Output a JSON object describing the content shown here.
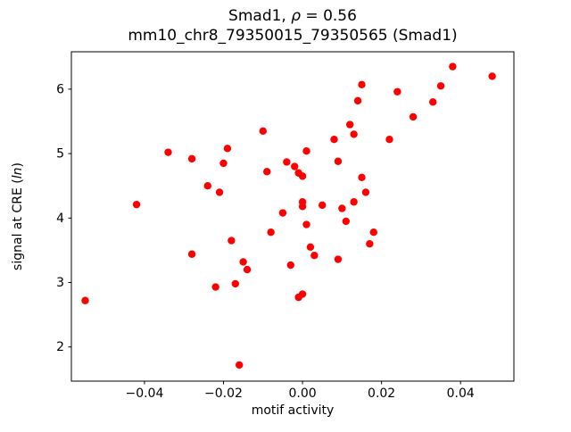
{
  "figure": {
    "background": "#ffffff",
    "frame_color": "#000000"
  },
  "chart_data": {
    "type": "scatter",
    "title_line1_parts": [
      {
        "text": "Smad1, ",
        "italic": false
      },
      {
        "text": "ρ",
        "italic": true
      },
      {
        "text": " = 0.56",
        "italic": false
      }
    ],
    "title_line2": "mm10_chr8_79350015_79350565 (Smad1)",
    "xlabel": "motif activity",
    "ylabel_parts": [
      {
        "text": "signal at CRE (",
        "italic": false
      },
      {
        "text": "ln",
        "italic": true
      },
      {
        "text": ")",
        "italic": false
      }
    ],
    "xlim": [
      -0.0585,
      0.0535
    ],
    "ylim": [
      1.47,
      6.58
    ],
    "xticks": [
      {
        "value": -0.04,
        "label": "−0.04"
      },
      {
        "value": -0.02,
        "label": "−0.02"
      },
      {
        "value": 0.0,
        "label": "0.00"
      },
      {
        "value": 0.02,
        "label": "0.02"
      },
      {
        "value": 0.04,
        "label": "0.04"
      }
    ],
    "yticks": [
      {
        "value": 2,
        "label": "2"
      },
      {
        "value": 3,
        "label": "3"
      },
      {
        "value": 4,
        "label": "4"
      },
      {
        "value": 5,
        "label": "5"
      },
      {
        "value": 6,
        "label": "6"
      }
    ],
    "grid": false,
    "legend": null,
    "marker_color": "#ff0000",
    "marker_radius": 4.2,
    "points": [
      [
        -0.055,
        2.72
      ],
      [
        -0.042,
        4.21
      ],
      [
        -0.034,
        5.02
      ],
      [
        -0.028,
        4.92
      ],
      [
        -0.028,
        3.44
      ],
      [
        -0.024,
        4.5
      ],
      [
        -0.022,
        2.93
      ],
      [
        -0.021,
        4.4
      ],
      [
        -0.02,
        4.85
      ],
      [
        -0.019,
        5.08
      ],
      [
        -0.018,
        3.65
      ],
      [
        -0.017,
        2.98
      ],
      [
        -0.016,
        1.72
      ],
      [
        -0.015,
        3.32
      ],
      [
        -0.014,
        3.2
      ],
      [
        -0.01,
        5.35
      ],
      [
        -0.009,
        4.72
      ],
      [
        -0.008,
        3.78
      ],
      [
        -0.005,
        4.08
      ],
      [
        -0.004,
        4.87
      ],
      [
        -0.003,
        3.27
      ],
      [
        -0.002,
        4.8
      ],
      [
        -0.001,
        4.7
      ],
      [
        -0.001,
        2.77
      ],
      [
        0.0,
        4.65
      ],
      [
        0.0,
        4.25
      ],
      [
        0.0,
        4.18
      ],
      [
        0.0,
        2.82
      ],
      [
        0.001,
        5.04
      ],
      [
        0.001,
        3.9
      ],
      [
        0.002,
        3.55
      ],
      [
        0.003,
        3.42
      ],
      [
        0.005,
        4.2
      ],
      [
        0.008,
        5.22
      ],
      [
        0.009,
        4.88
      ],
      [
        0.009,
        3.36
      ],
      [
        0.01,
        4.15
      ],
      [
        0.011,
        3.95
      ],
      [
        0.012,
        5.45
      ],
      [
        0.013,
        5.3
      ],
      [
        0.013,
        4.25
      ],
      [
        0.014,
        5.82
      ],
      [
        0.015,
        6.07
      ],
      [
        0.015,
        4.63
      ],
      [
        0.016,
        4.4
      ],
      [
        0.017,
        3.6
      ],
      [
        0.018,
        3.78
      ],
      [
        0.022,
        5.22
      ],
      [
        0.024,
        5.96
      ],
      [
        0.028,
        5.57
      ],
      [
        0.033,
        5.8
      ],
      [
        0.035,
        6.05
      ],
      [
        0.038,
        6.35
      ],
      [
        0.048,
        6.2
      ]
    ]
  }
}
